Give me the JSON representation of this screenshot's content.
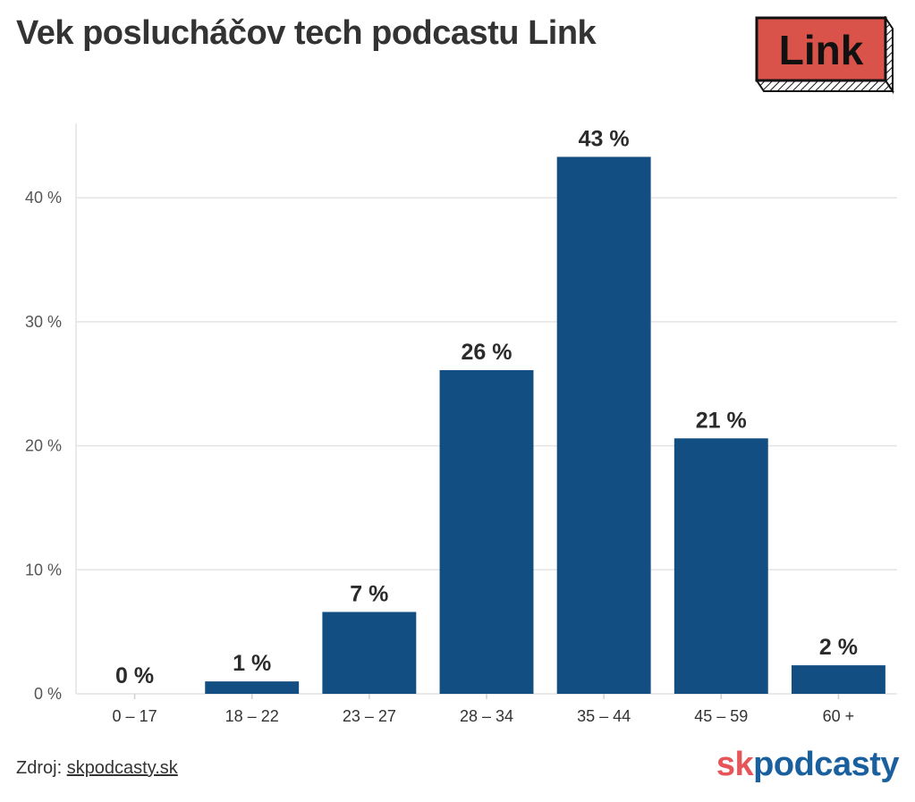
{
  "title": "Vek poslucháčov tech podcastu Link",
  "logo": {
    "text": "Link",
    "color": "#d9534a"
  },
  "source": {
    "prefix": "Zdroj: ",
    "link_text": "skpodcasty.sk"
  },
  "brand": {
    "part1": "sk",
    "part2": "podcasty",
    "color1": "#e5555a",
    "color2": "#1a5f9e"
  },
  "chart_data": {
    "type": "bar",
    "categories": [
      "0 – 17",
      "18 – 22",
      "23 – 27",
      "28 – 34",
      "35 – 44",
      "45 – 59",
      "60 +"
    ],
    "values": [
      0,
      1,
      6.6,
      26.1,
      43.3,
      20.6,
      2.3
    ],
    "data_labels": [
      "0 %",
      "1 %",
      "7 %",
      "26 %",
      "43 %",
      "21 %",
      "2 %"
    ],
    "y_ticks": [
      0,
      10,
      20,
      30,
      40
    ],
    "y_tick_labels": [
      "0 %",
      "10 %",
      "20 %",
      "30 %",
      "40 %"
    ],
    "ylim": [
      0,
      46
    ],
    "grid": true,
    "bar_color": "#124e82"
  }
}
